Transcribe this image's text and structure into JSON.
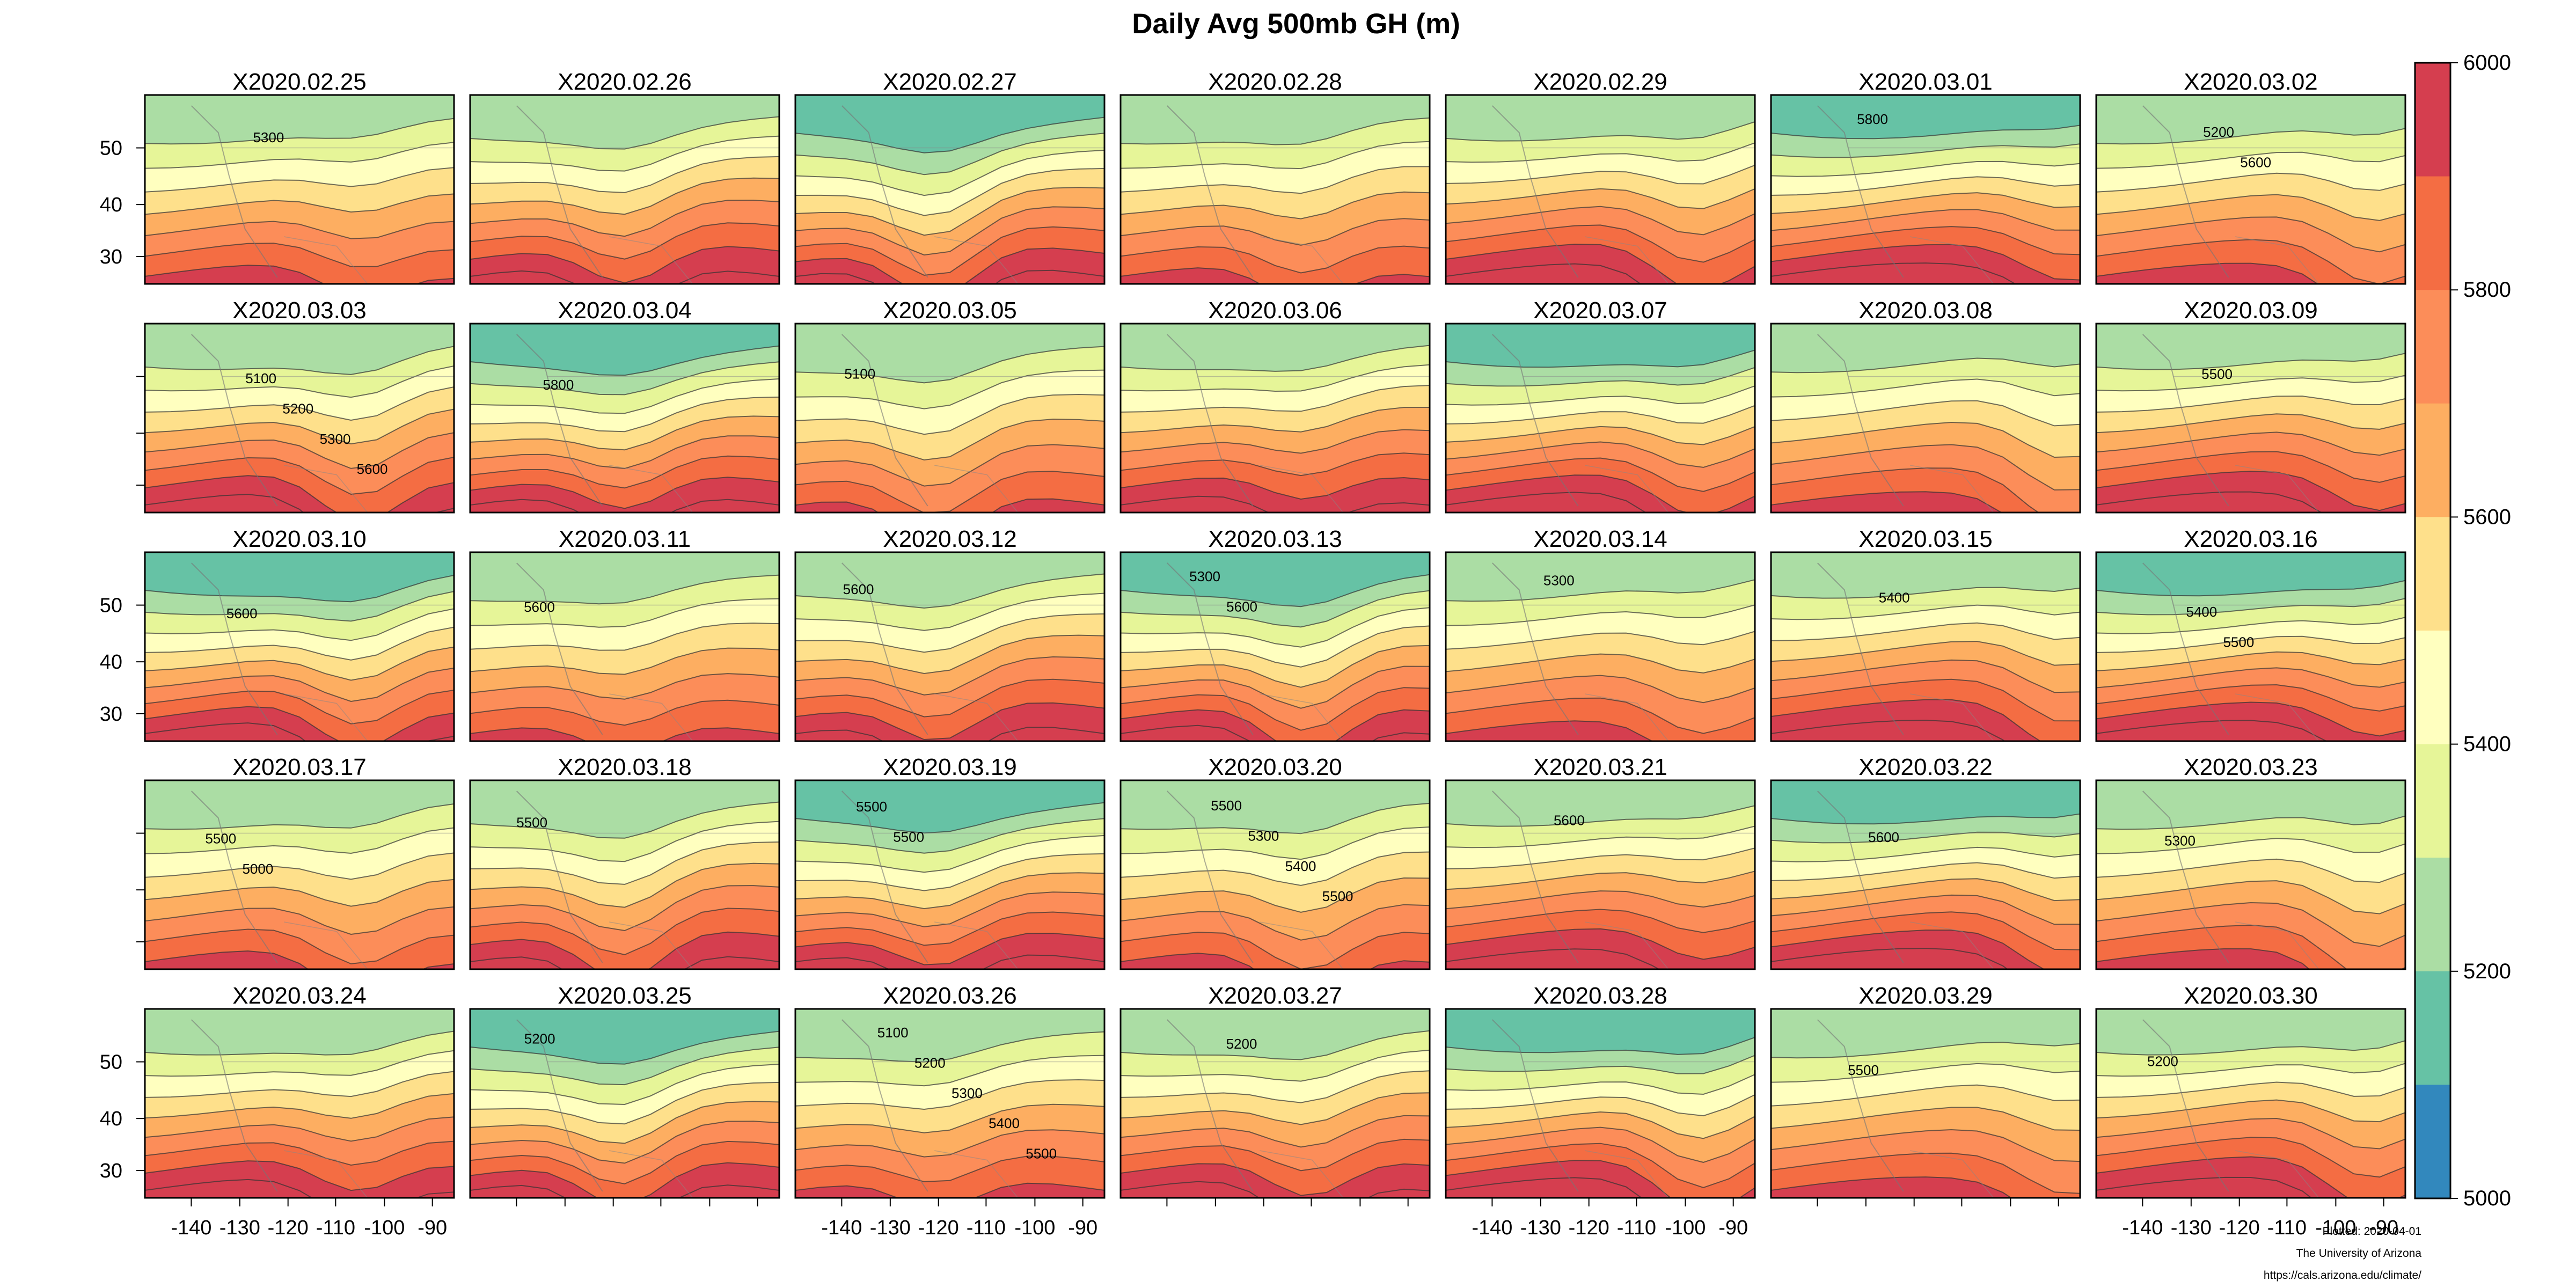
{
  "title": "Daily Avg 500mb GH (m)",
  "panels": [
    {
      "label": "X2020.02.25",
      "contours": [
        "5300"
      ]
    },
    {
      "label": "X2020.02.26",
      "contours": []
    },
    {
      "label": "X2020.02.27",
      "contours": []
    },
    {
      "label": "X2020.02.28",
      "contours": []
    },
    {
      "label": "X2020.02.29",
      "contours": []
    },
    {
      "label": "X2020.03.01",
      "contours": [
        "5800"
      ]
    },
    {
      "label": "X2020.03.02",
      "contours": [
        "5200",
        "5600"
      ]
    },
    {
      "label": "X2020.03.03",
      "contours": [
        "5100",
        "5200",
        "5300",
        "5600"
      ]
    },
    {
      "label": "X2020.03.04",
      "contours": [
        "5800"
      ]
    },
    {
      "label": "X2020.03.05",
      "contours": [
        "5100"
      ]
    },
    {
      "label": "X2020.03.06",
      "contours": []
    },
    {
      "label": "X2020.03.07",
      "contours": []
    },
    {
      "label": "X2020.03.08",
      "contours": []
    },
    {
      "label": "X2020.03.09",
      "contours": [
        "5500"
      ]
    },
    {
      "label": "X2020.03.10",
      "contours": [
        "5600"
      ]
    },
    {
      "label": "X2020.03.11",
      "contours": [
        "5600"
      ]
    },
    {
      "label": "X2020.03.12",
      "contours": [
        "5600"
      ]
    },
    {
      "label": "X2020.03.13",
      "contours": [
        "5300",
        "5600"
      ]
    },
    {
      "label": "X2020.03.14",
      "contours": [
        "5300"
      ]
    },
    {
      "label": "X2020.03.15",
      "contours": [
        "5400"
      ]
    },
    {
      "label": "X2020.03.16",
      "contours": [
        "5400",
        "5500"
      ]
    },
    {
      "label": "X2020.03.17",
      "contours": [
        "5500",
        "5000"
      ]
    },
    {
      "label": "X2020.03.18",
      "contours": [
        "5500"
      ]
    },
    {
      "label": "X2020.03.19",
      "contours": [
        "5500",
        "5500"
      ]
    },
    {
      "label": "X2020.03.20",
      "contours": [
        "5500",
        "5300",
        "5400",
        "5500"
      ]
    },
    {
      "label": "X2020.03.21",
      "contours": [
        "5600"
      ]
    },
    {
      "label": "X2020.03.22",
      "contours": [
        "5600"
      ]
    },
    {
      "label": "X2020.03.23",
      "contours": [
        "5300"
      ]
    },
    {
      "label": "X2020.03.24",
      "contours": []
    },
    {
      "label": "X2020.03.25",
      "contours": [
        "5200"
      ]
    },
    {
      "label": "X2020.03.26",
      "contours": [
        "5100",
        "5200",
        "5300",
        "5400",
        "5500"
      ]
    },
    {
      "label": "X2020.03.27",
      "contours": [
        "5200"
      ]
    },
    {
      "label": "X2020.03.28",
      "contours": []
    },
    {
      "label": "X2020.03.29",
      "contours": [
        "5500"
      ]
    },
    {
      "label": "X2020.03.30",
      "contours": [
        "5200"
      ]
    }
  ],
  "axes": {
    "lat_ticks": [
      "50",
      "40",
      "30"
    ],
    "lon_ticks": [
      "-140",
      "-130",
      "-120",
      "-110",
      "-100",
      "-90"
    ]
  },
  "colorbar": {
    "labels": [
      "6000",
      "5800",
      "5600",
      "5400",
      "5200",
      "5000"
    ],
    "colors": [
      "#d53e4f",
      "#f46d43",
      "#fc8d59",
      "#fdae61",
      "#fee08b",
      "#ffffbf",
      "#e6f598",
      "#abdda4",
      "#66c2a5",
      "#3288bd"
    ]
  },
  "credits": {
    "date": "Plotted: 2020-04-01",
    "org": "The University of Arizona",
    "url": "https://cals.arizona.edu/climate/"
  }
}
